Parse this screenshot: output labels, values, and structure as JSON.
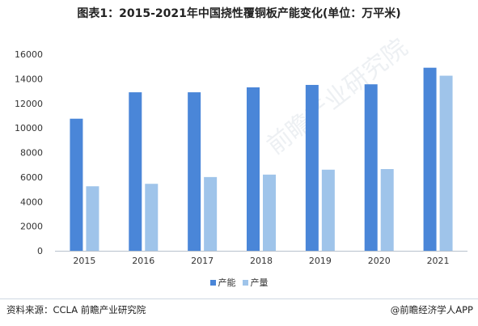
{
  "title": "图表1：2015-2021年中国挠性覆铜板产能变化(单位：万平米)",
  "source": "资料来源：CCLA 前瞻产业研究院",
  "brand": "@前瞻经济学人APP",
  "watermark": "前瞻产业研究院",
  "colors": {
    "capacity": "#4a86d8",
    "output": "#9fc4ea",
    "axis": "#b7c1cc",
    "text": "#333333"
  },
  "chart_data": {
    "type": "bar",
    "categories": [
      "2015",
      "2016",
      "2017",
      "2018",
      "2019",
      "2020",
      "2021"
    ],
    "series": [
      {
        "name": "产能",
        "values": [
          10750,
          12900,
          12900,
          13300,
          13500,
          13550,
          14900
        ]
      },
      {
        "name": "产量",
        "values": [
          5250,
          5450,
          6000,
          6200,
          6600,
          6650,
          14250
        ]
      }
    ],
    "ylim": [
      0,
      16000
    ],
    "yticks": [
      0,
      2000,
      4000,
      6000,
      8000,
      10000,
      12000,
      14000,
      16000
    ],
    "grid": false,
    "legend_position": "bottom"
  }
}
